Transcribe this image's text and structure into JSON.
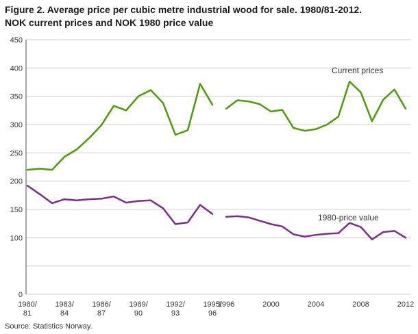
{
  "title": {
    "line1": "Figure 2. Average price per cubic metre industrial wood for sale. 1980/81-2012.",
    "line2": "NOK current prices and NOK 1980 price value"
  },
  "source": "Source: Statistics Norway.",
  "chart_data": {
    "type": "line",
    "title": "Figure 2. Average price per cubic metre industrial wood for sale. 1980/81-2012. NOK current prices and NOK 1980 price value",
    "xlabel": "",
    "ylabel": "",
    "ylim": [
      0,
      450
    ],
    "grid": true,
    "grid_step": 50,
    "ytick_labels": [
      450,
      400,
      350,
      300,
      250,
      200,
      150,
      100,
      0
    ],
    "note": "Data break between forestry year 1995/96 and calendar year 1996",
    "seg1_categories": [
      "1980/81",
      "1981/82",
      "1982/83",
      "1983/84",
      "1984/85",
      "1985/86",
      "1986/87",
      "1987/88",
      "1988/89",
      "1989/90",
      "1990/91",
      "1991/92",
      "1992/93",
      "1993/94",
      "1994/95",
      "1995/96"
    ],
    "seg2_categories": [
      "1996",
      "1997",
      "1998",
      "1999",
      "2000",
      "2001",
      "2002",
      "2003",
      "2004",
      "2005",
      "2006",
      "2007",
      "2008",
      "2009",
      "2010",
      "2011",
      "2012"
    ],
    "x_ticks": {
      "seg1": [
        {
          "index": 0,
          "top": "1980/",
          "bottom": "81"
        },
        {
          "index": 3,
          "top": "1983/",
          "bottom": "84"
        },
        {
          "index": 6,
          "top": "1986/",
          "bottom": "87"
        },
        {
          "index": 9,
          "top": "1989/",
          "bottom": "90"
        },
        {
          "index": 12,
          "top": "1992/",
          "bottom": "93"
        },
        {
          "index": 15,
          "top": "1995/",
          "bottom": "96"
        }
      ],
      "seg2": [
        {
          "index": 0,
          "label": "1996"
        },
        {
          "index": 4,
          "label": "2000"
        },
        {
          "index": 8,
          "label": "2004"
        },
        {
          "index": 12,
          "label": "2008"
        },
        {
          "index": 16,
          "label": "2012"
        }
      ]
    },
    "series": [
      {
        "name": "Current prices",
        "color": "#4c9c05",
        "seg1_values": [
          220,
          222,
          220,
          243,
          256,
          276,
          299,
          333,
          325,
          350,
          361,
          338,
          282,
          290,
          372,
          335
        ],
        "seg2_values": [
          328,
          343,
          341,
          336,
          323,
          326,
          294,
          289,
          292,
          300,
          314,
          376,
          357,
          306,
          344,
          362,
          328
        ]
      },
      {
        "name": "1980-price value",
        "color": "#7d2b8d",
        "seg1_values": [
          192,
          177,
          161,
          168,
          166,
          168,
          169,
          173,
          162,
          165,
          166,
          152,
          124,
          127,
          158,
          142
        ],
        "seg2_values": [
          137,
          138,
          136,
          130,
          124,
          120,
          106,
          102,
          105,
          107,
          108,
          126,
          119,
          97,
          110,
          112,
          100
        ]
      }
    ]
  }
}
